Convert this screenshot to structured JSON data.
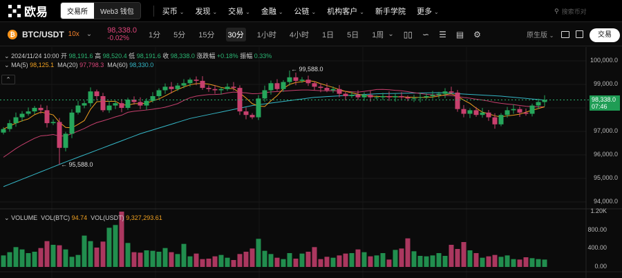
{
  "nav": {
    "logo": "欧易",
    "tabs": [
      "交易所",
      "Web3 钱包"
    ],
    "items": [
      {
        "label": "买币",
        "dd": true
      },
      {
        "label": "发现",
        "dd": true
      },
      {
        "label": "交易",
        "dd": true
      },
      {
        "label": "金融",
        "dd": true
      },
      {
        "label": "公链",
        "dd": true
      },
      {
        "label": "机构客户",
        "dd": true
      },
      {
        "label": "新手学院",
        "dd": false
      },
      {
        "label": "更多",
        "dd": true
      }
    ],
    "search_placeholder": "搜索币对"
  },
  "toolbar": {
    "pair": "BTC/USDT",
    "leverage": "10x",
    "price": "98,338.0",
    "change": "-0.02%",
    "timeframes": [
      "1分",
      "5分",
      "15分",
      "30分",
      "1小时",
      "4小时",
      "1日",
      "5日",
      "1周"
    ],
    "active_timeframe": "30分",
    "view": "原生版",
    "trade_button": "交易"
  },
  "info": {
    "date": "2024/11/24 10:00",
    "open_label": "开",
    "open": "98,191.6",
    "high_label": "高",
    "high": "98,520.4",
    "low_label": "低",
    "low": "98,191.6",
    "close_label": "收",
    "close": "98,338.0",
    "chg_label": "涨跌幅",
    "chg": "+0.18%",
    "amp_label": "振幅",
    "amp": "0.33%"
  },
  "ma": {
    "ma5_label": "MA(5)",
    "ma5": "98,125.1",
    "ma20_label": "MA(20)",
    "ma20": "97,798.3",
    "ma60_label": "MA(60)",
    "ma60": "98,330.0"
  },
  "volume": {
    "label": "VOLUME",
    "btc_label": "VOL(BTC)",
    "btc": "94.74",
    "usdt_label": "VOL(USDT)",
    "usdt": "9,327,293.61"
  },
  "current": {
    "price": "98,338.0",
    "countdown": "07:46"
  },
  "colors": {
    "up": "#26a65b",
    "down": "#c8406e",
    "ma5": "#f0a020",
    "ma20": "#c8406e",
    "ma60": "#35b8c8",
    "accent": "#1f9d55"
  },
  "chart_data": {
    "type": "candlestick",
    "price_ticks": [
      "100,000.0",
      "99,000.0",
      "97,000.0",
      "96,000.0",
      "95,000.0",
      "94,000.0"
    ],
    "price_tick_values": [
      100000,
      99000,
      97000,
      96000,
      95000,
      94000
    ],
    "ylim": [
      93950,
      100300
    ],
    "volume_ticks": [
      "1.20K",
      "800.00",
      "400.00",
      "0.00"
    ],
    "volume_ylim": [
      0,
      1200
    ],
    "annotations": {
      "max": "99,588.0",
      "max_value": 99588,
      "max_index": 46,
      "min": "95,588.0",
      "min_value": 95588,
      "min_index": 9
    },
    "open0": 96950,
    "close": [
      97100,
      97350,
      97600,
      97750,
      97850,
      98000,
      97900,
      97350,
      97400,
      96300,
      96900,
      97800,
      98100,
      98200,
      98700,
      98500,
      97900,
      98100,
      98200,
      98000,
      98350,
      98250,
      98100,
      98300,
      98500,
      98750,
      98900,
      98800,
      98950,
      99050,
      99200,
      99150,
      98850,
      98800,
      98750,
      98800,
      98900,
      98850,
      97850,
      97700,
      97600,
      98400,
      98750,
      99050,
      98800,
      99100,
      99300,
      99150,
      99200,
      99050,
      98900,
      98850,
      98750,
      98800,
      98600,
      98500,
      98550,
      98450,
      98550,
      98450,
      98450,
      98500,
      98450,
      98500,
      98450,
      98400,
      98420,
      98450,
      98500,
      98550,
      98600,
      98700,
      98650,
      97950,
      97750,
      97900,
      97700,
      97800,
      97600,
      97300,
      97700,
      97900,
      97950,
      97800,
      97750,
      98100,
      98250,
      98338
    ],
    "volume": [
      250,
      320,
      430,
      380,
      300,
      330,
      410,
      560,
      480,
      470,
      380,
      220,
      260,
      680,
      560,
      420,
      550,
      850,
      910,
      1200,
      520,
      320,
      310,
      360,
      350,
      330,
      410,
      320,
      280,
      500,
      230,
      290,
      170,
      180,
      230,
      260,
      200,
      150,
      280,
      330,
      400,
      610,
      350,
      280,
      200,
      170,
      300,
      180,
      290,
      330,
      430,
      170,
      220,
      200,
      250,
      290,
      300,
      380,
      320,
      230,
      250,
      300,
      160,
      370,
      400,
      620,
      340,
      240,
      230,
      250,
      300,
      240,
      480,
      390,
      540,
      360,
      300,
      200,
      230,
      260,
      220,
      250,
      170,
      160,
      210,
      190,
      170,
      160
    ],
    "ma60_anchors": {
      "index": [
        0,
        10,
        22,
        30,
        40,
        50,
        60,
        70,
        80,
        87
      ],
      "value": [
        94650,
        95700,
        96900,
        97550,
        98100,
        98450,
        98600,
        98650,
        98500,
        98330
      ]
    }
  }
}
